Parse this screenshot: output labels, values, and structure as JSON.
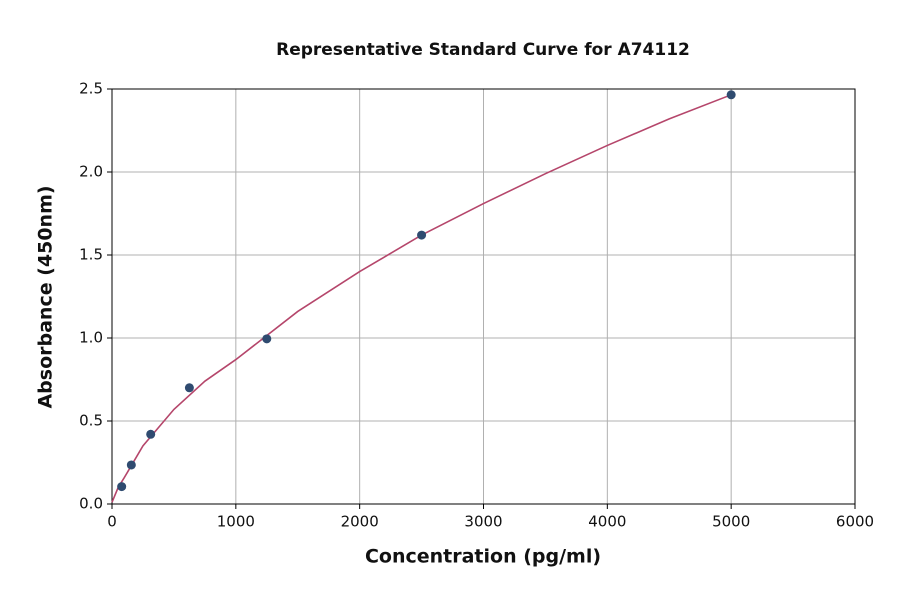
{
  "chart_data": {
    "type": "scatter",
    "title": "Representative Standard Curve for A74112",
    "x_label": "Concentration (pg/ml)",
    "y_label": "Absorbance (450nm)",
    "xlim": [
      0,
      6000
    ],
    "ylim": [
      0,
      2.5
    ],
    "xticks": [
      0,
      1000,
      2000,
      3000,
      4000,
      5000,
      6000
    ],
    "yticks": [
      {
        "value": 0,
        "label": "0.0"
      },
      0.5,
      {
        "value": 1,
        "label": "1.0"
      },
      1.5,
      {
        "value": 2,
        "label": "2.0"
      },
      2.5
    ],
    "grid": true,
    "series": [
      {
        "type": "scatter",
        "color": "#2f4b70",
        "x": [
          78.125,
          156.25,
          312.5,
          625,
          1250,
          2500,
          5000
        ],
        "values": [
          0.105,
          0.235,
          0.42,
          0.7,
          0.995,
          1.62,
          2.465
        ]
      },
      {
        "type": "line",
        "color": "#b5466b",
        "x": [
          0,
          50,
          100,
          250,
          500,
          750,
          1000,
          1500,
          2000,
          2500,
          3000,
          3500,
          4000,
          4500,
          5000
        ],
        "values": [
          0.01,
          0.1,
          0.16,
          0.35,
          0.57,
          0.74,
          0.87,
          1.16,
          1.4,
          1.62,
          1.81,
          1.99,
          2.16,
          2.32,
          2.465
        ]
      }
    ]
  }
}
